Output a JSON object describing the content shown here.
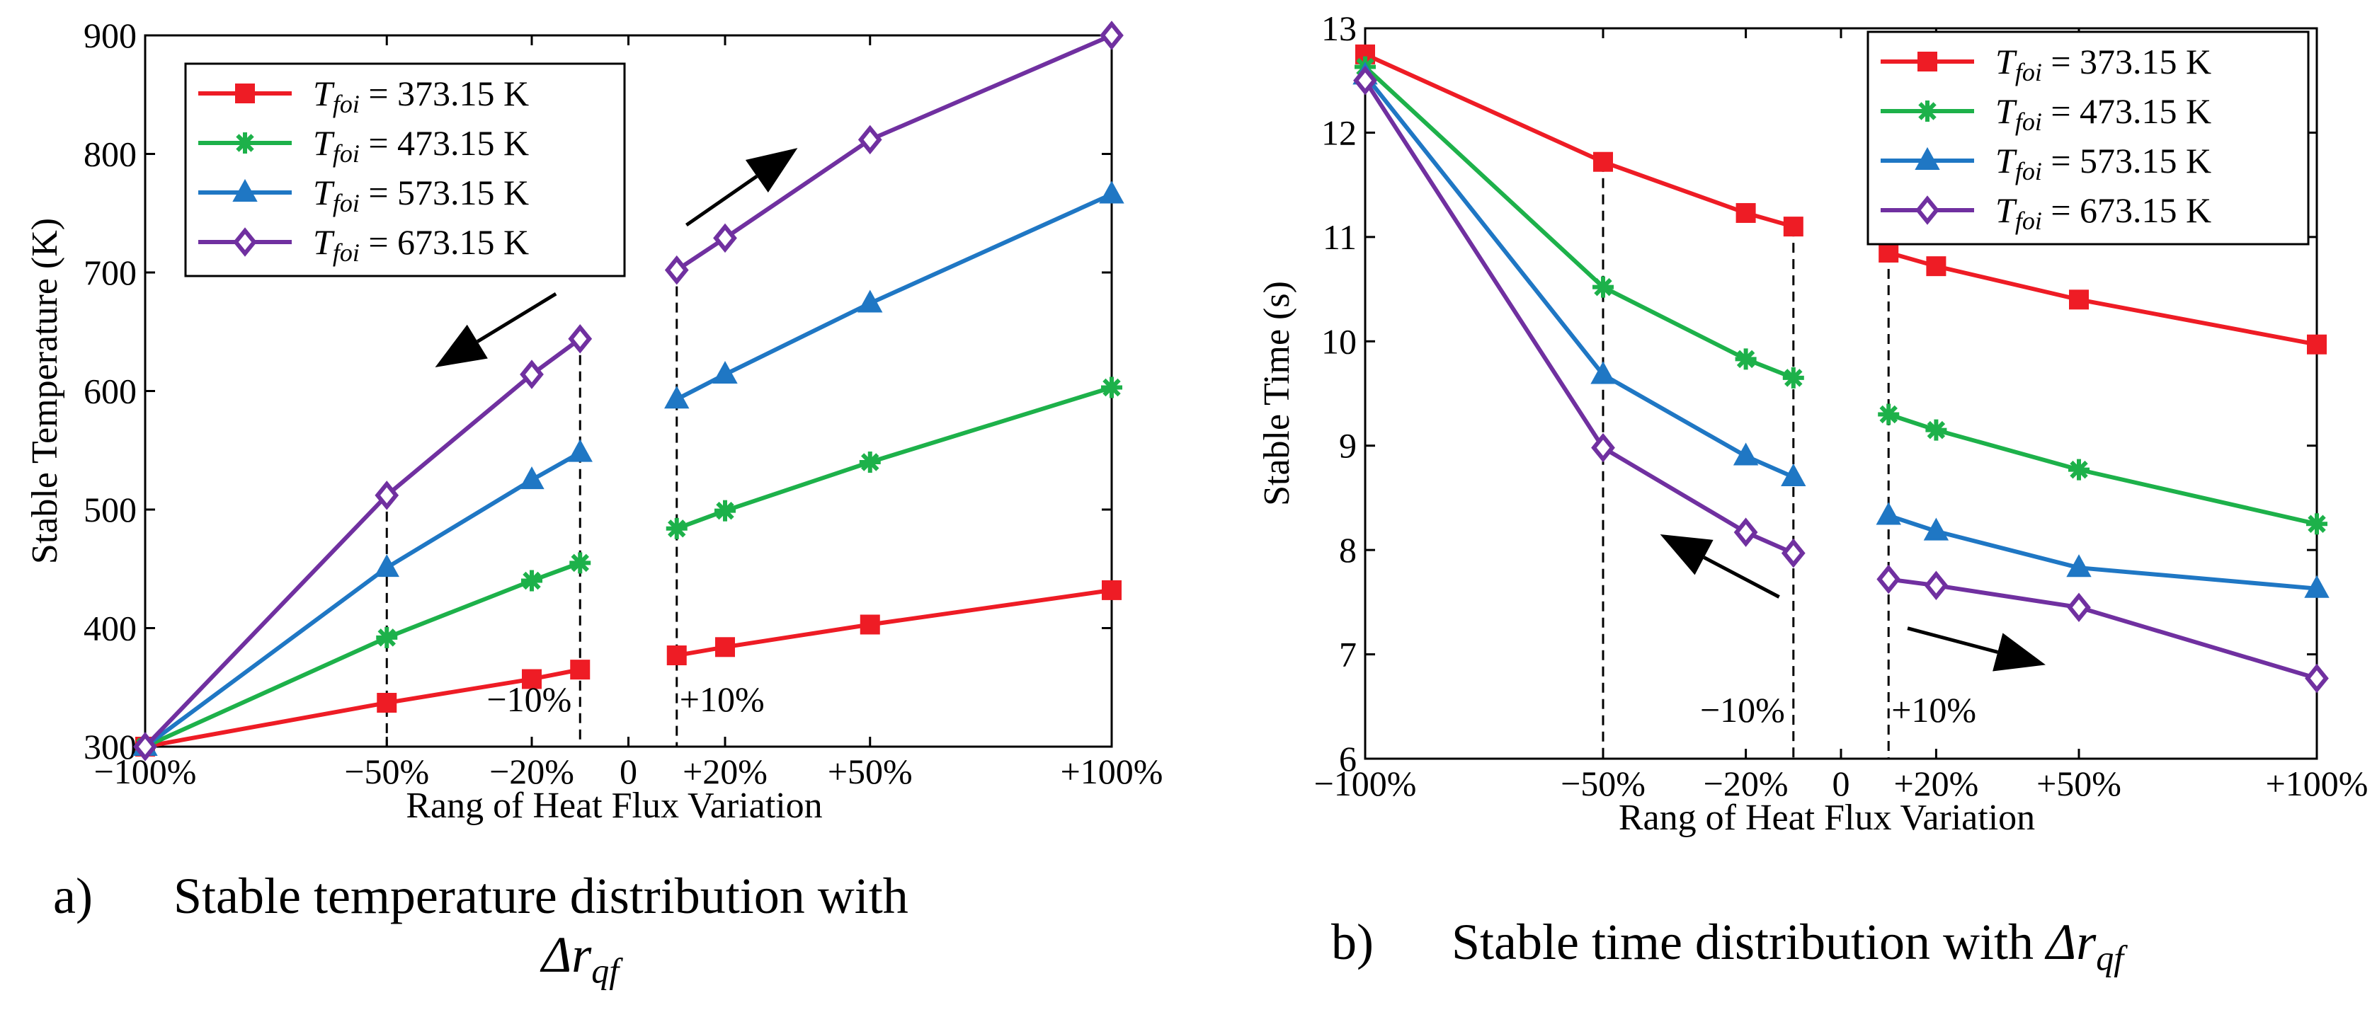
{
  "chart_data": [
    {
      "type": "line",
      "panel": "a",
      "xlabel": "Rang of Heat Flux Variation",
      "ylabel": "Stable Temperature (K)",
      "ylim": [
        300,
        900
      ],
      "yticks": [
        300,
        400,
        500,
        600,
        700,
        800,
        900
      ],
      "xticks": [
        {
          "x": -100,
          "label": "−100%"
        },
        {
          "x": -50,
          "label": "−50%"
        },
        {
          "x": -20,
          "label": "−20%"
        },
        {
          "x": 0,
          "label": "0"
        },
        {
          "x": 20,
          "label": "+20%"
        },
        {
          "x": 50,
          "label": "+50%"
        },
        {
          "x": 100,
          "label": "+100%"
        }
      ],
      "xlim": [
        -100,
        100
      ],
      "legend_position": "top-left",
      "annotations": [
        {
          "text": "−10%",
          "x": -10
        },
        {
          "text": "+10%",
          "x": 10
        }
      ],
      "vlines": [
        {
          "x": -50,
          "y": 512
        },
        {
          "x": -10,
          "y": 644
        },
        {
          "x": 10,
          "y": 702
        }
      ],
      "arrows": [
        {
          "direction": "down-left",
          "from": [
            -15,
            682
          ],
          "to": [
            -40,
            620
          ]
        },
        {
          "direction": "up-right",
          "from": [
            12,
            740
          ],
          "to": [
            35,
            805
          ]
        }
      ],
      "series": [
        {
          "name": "373.15 K",
          "color": "#ee1c25",
          "marker": "square",
          "x": [
            -100,
            -50,
            -20,
            -10,
            10,
            20,
            50,
            100
          ],
          "values": [
            300,
            337,
            357,
            365,
            377,
            384,
            403,
            432
          ]
        },
        {
          "name": "473.15 K",
          "color": "#1db14a",
          "marker": "star",
          "x": [
            -100,
            -50,
            -20,
            -10,
            10,
            20,
            50,
            100
          ],
          "values": [
            300,
            392,
            440,
            455,
            484,
            499,
            540,
            603
          ]
        },
        {
          "name": "573.15 K",
          "color": "#1f77c4",
          "marker": "triangle",
          "x": [
            -100,
            -50,
            -20,
            -10,
            10,
            20,
            50,
            100
          ],
          "values": [
            300,
            451,
            525,
            548,
            593,
            614,
            674,
            766
          ]
        },
        {
          "name": "673.15 K",
          "color": "#7030a0",
          "marker": "diamond",
          "x": [
            -100,
            -50,
            -20,
            -10,
            10,
            20,
            50,
            100
          ],
          "values": [
            300,
            512,
            614,
            644,
            702,
            729,
            812,
            900
          ]
        }
      ]
    },
    {
      "type": "line",
      "panel": "b",
      "xlabel": "Rang of Heat Flux Variation",
      "ylabel": "Stable Time (s)",
      "ylim": [
        6,
        13
      ],
      "yticks": [
        6,
        7,
        8,
        9,
        10,
        11,
        12,
        13
      ],
      "xticks": [
        {
          "x": -100,
          "label": "−100%"
        },
        {
          "x": -50,
          "label": "−50%"
        },
        {
          "x": -20,
          "label": "−20%"
        },
        {
          "x": 0,
          "label": "0"
        },
        {
          "x": 20,
          "label": "+20%"
        },
        {
          "x": 50,
          "label": "+50%"
        },
        {
          "x": 100,
          "label": "+100%"
        }
      ],
      "xlim": [
        -100,
        100
      ],
      "legend_position": "top-right",
      "annotations": [
        {
          "text": "−10%",
          "x": -10
        },
        {
          "text": "+10%",
          "x": 10
        }
      ],
      "vlines": [
        {
          "x": -50,
          "y": 11.72
        },
        {
          "x": -10,
          "y": 11.1
        },
        {
          "x": 10,
          "y": 10.85
        }
      ],
      "arrows": [
        {
          "direction": "up-left",
          "from": [
            -13,
            7.55
          ],
          "to": [
            -38,
            8.15
          ]
        },
        {
          "direction": "down-right",
          "from": [
            14,
            7.25
          ],
          "to": [
            43,
            6.9
          ]
        }
      ],
      "series": [
        {
          "name": "373.15 K",
          "color": "#ee1c25",
          "marker": "square",
          "x": [
            -100,
            -50,
            -20,
            -10,
            10,
            20,
            50,
            100
          ],
          "values": [
            12.75,
            11.72,
            11.23,
            11.1,
            10.85,
            10.72,
            10.4,
            9.97
          ]
        },
        {
          "name": "473.15 K",
          "color": "#1db14a",
          "marker": "star",
          "x": [
            -100,
            -50,
            -20,
            -10,
            10,
            20,
            50,
            100
          ],
          "values": [
            12.63,
            10.52,
            9.83,
            9.65,
            9.3,
            9.15,
            8.77,
            8.25
          ]
        },
        {
          "name": "573.15 K",
          "color": "#1f77c4",
          "marker": "triangle",
          "x": [
            -100,
            -50,
            -20,
            -10,
            10,
            20,
            50,
            100
          ],
          "values": [
            12.55,
            9.68,
            8.9,
            8.7,
            8.33,
            8.18,
            7.83,
            7.63
          ]
        },
        {
          "name": "673.15 K",
          "color": "#7030a0",
          "marker": "diamond",
          "x": [
            -100,
            -50,
            -20,
            -10,
            10,
            20,
            50,
            100
          ],
          "values": [
            12.5,
            8.98,
            8.17,
            7.97,
            7.72,
            7.66,
            7.45,
            6.77
          ]
        }
      ]
    }
  ],
  "legend": {
    "symbol_base": "T",
    "symbol_sub": "foi",
    "equals": " = "
  },
  "captions": {
    "a": {
      "letter": "a)",
      "line1": "Stable temperature distribution with",
      "symbol": "Δr",
      "sub": "qf"
    },
    "b": {
      "letter": "b)",
      "line1": "Stable time distribution with ",
      "symbol": "Δr",
      "sub": "qf"
    }
  }
}
